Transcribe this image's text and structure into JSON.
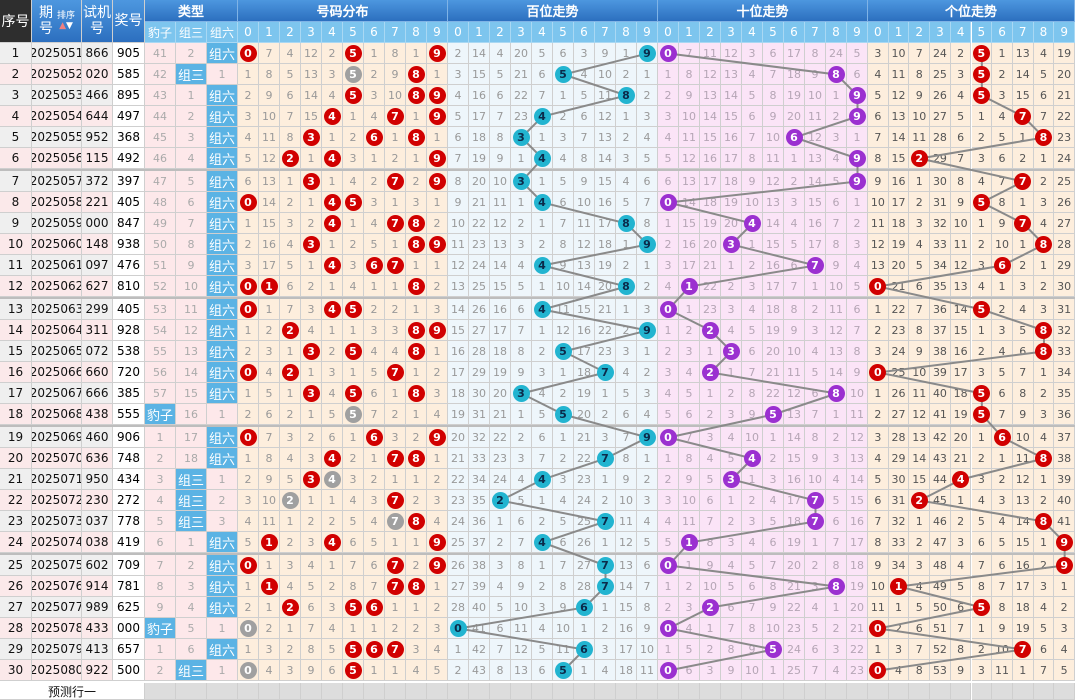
{
  "header": {
    "index": "序号",
    "issue": "期号",
    "sort": "排序",
    "trial": "试机号",
    "prize": "奖号",
    "type": "类型",
    "type_cols": [
      "豹子",
      "组三",
      "组六"
    ],
    "dist": "号码分布",
    "hundreds": "百位走势",
    "tens": "十位走势",
    "units": "个位走势",
    "digits": [
      "0",
      "1",
      "2",
      "3",
      "4",
      "5",
      "6",
      "7",
      "8",
      "9"
    ]
  },
  "rows": [
    {
      "n": "1",
      "issue": "2025051",
      "trial": "866",
      "prize": "905"
    },
    {
      "n": "2",
      "issue": "2025052",
      "trial": "020",
      "prize": "585"
    },
    {
      "n": "3",
      "issue": "2025053",
      "trial": "466",
      "prize": "895"
    },
    {
      "n": "4",
      "issue": "2025054",
      "trial": "644",
      "prize": "497"
    },
    {
      "n": "5",
      "issue": "2025055",
      "trial": "952",
      "prize": "368"
    },
    {
      "n": "6",
      "issue": "2025056",
      "trial": "115",
      "prize": "492"
    },
    {
      "n": "7",
      "issue": "2025057",
      "trial": "372",
      "prize": "397"
    },
    {
      "n": "8",
      "issue": "2025058",
      "trial": "221",
      "prize": "405"
    },
    {
      "n": "9",
      "issue": "2025059",
      "trial": "000",
      "prize": "847"
    },
    {
      "n": "10",
      "issue": "2025060",
      "trial": "148",
      "prize": "938"
    },
    {
      "n": "11",
      "issue": "2025061",
      "trial": "097",
      "prize": "476"
    },
    {
      "n": "12",
      "issue": "2025062",
      "trial": "627",
      "prize": "810"
    },
    {
      "n": "13",
      "issue": "2025063",
      "trial": "299",
      "prize": "405"
    },
    {
      "n": "14",
      "issue": "2025064",
      "trial": "311",
      "prize": "928"
    },
    {
      "n": "15",
      "issue": "2025065",
      "trial": "072",
      "prize": "538"
    },
    {
      "n": "16",
      "issue": "2025066",
      "trial": "660",
      "prize": "720"
    },
    {
      "n": "17",
      "issue": "2025067",
      "trial": "666",
      "prize": "385"
    },
    {
      "n": "18",
      "issue": "2025068",
      "trial": "438",
      "prize": "555"
    },
    {
      "n": "19",
      "issue": "2025069",
      "trial": "460",
      "prize": "906"
    },
    {
      "n": "20",
      "issue": "2025070",
      "trial": "636",
      "prize": "748"
    },
    {
      "n": "21",
      "issue": "2025071",
      "trial": "950",
      "prize": "434"
    },
    {
      "n": "22",
      "issue": "2025072",
      "trial": "230",
      "prize": "272"
    },
    {
      "n": "23",
      "issue": "2025073",
      "trial": "037",
      "prize": "778"
    },
    {
      "n": "24",
      "issue": "2025074",
      "trial": "038",
      "prize": "419"
    },
    {
      "n": "25",
      "issue": "2025075",
      "trial": "602",
      "prize": "709"
    },
    {
      "n": "26",
      "issue": "2025076",
      "trial": "914",
      "prize": "781"
    },
    {
      "n": "27",
      "issue": "2025077",
      "trial": "989",
      "prize": "625"
    },
    {
      "n": "28",
      "issue": "2025078",
      "trial": "433",
      "prize": "000"
    },
    {
      "n": "29",
      "issue": "2025079",
      "trial": "413",
      "prize": "657"
    },
    {
      "n": "30",
      "issue": "2025080",
      "trial": "922",
      "prize": "500"
    }
  ],
  "row1_omission": {
    "type": [
      41,
      2,
      0
    ],
    "dist": [
      0,
      7,
      4,
      12,
      2,
      0,
      1,
      8,
      1,
      0
    ],
    "hundreds": [
      2,
      14,
      4,
      20,
      5,
      6,
      3,
      9,
      1,
      0
    ],
    "tens": [
      0,
      7,
      11,
      12,
      3,
      6,
      17,
      8,
      24,
      5
    ],
    "units": [
      3,
      10,
      7,
      24,
      2,
      0,
      1,
      13,
      4,
      19
    ]
  },
  "footer": {
    "forecast": "预测行一"
  },
  "colors": {
    "dist_ball": "#d10000",
    "dist_repeat_ball": "#a0a0a0",
    "hundreds_ball": "#22b4d0",
    "tens_ball": "#9b30d0",
    "units_ball": "#d10000",
    "type_hit": "#5bb3e4",
    "trend_line": "#8a8a8a"
  }
}
